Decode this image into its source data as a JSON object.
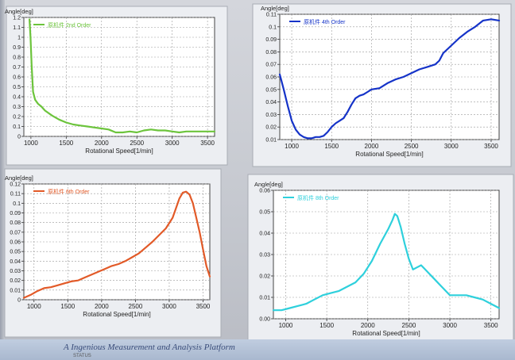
{
  "footer": {
    "text": "A Ingenious Measurement and Analysis Platform",
    "sub": "STATUS"
  },
  "chart_data": [
    {
      "type": "line",
      "ylabel": "Angle[deg]",
      "xlabel": "Rotational Speed[1/min]",
      "legend": "原机件 2nd Order",
      "color": "#6cc43c",
      "xlim": [
        900,
        3600
      ],
      "ylim": [
        0,
        1.2
      ],
      "xticks": [
        "1000",
        "1500",
        "2000",
        "2500",
        "3000",
        "3500"
      ],
      "xtick_values": [
        1000,
        1500,
        2000,
        2500,
        3000,
        3500
      ],
      "yticks": [
        "0",
        "0.1",
        "0.2",
        "0.3",
        "0.4",
        "0.5",
        "0.6",
        "0.7",
        "0.8",
        "0.9",
        "1",
        "1.1",
        "1.2"
      ],
      "ytick_values": [
        0,
        0.1,
        0.2,
        0.3,
        0.4,
        0.5,
        0.6,
        0.7,
        0.8,
        0.9,
        1.0,
        1.1,
        1.2
      ],
      "series": [
        {
          "x": [
            980,
            995,
            1010,
            1030,
            1060,
            1100,
            1150,
            1200,
            1300,
            1400,
            1500,
            1600,
            1700,
            1800,
            1900,
            2000,
            2100,
            2200,
            2300,
            2400,
            2500,
            2600,
            2700,
            2800,
            2900,
            3000,
            3100,
            3200,
            3300,
            3400,
            3500,
            3600
          ],
          "y": [
            1.18,
            1.0,
            0.72,
            0.45,
            0.37,
            0.33,
            0.3,
            0.26,
            0.21,
            0.17,
            0.14,
            0.12,
            0.11,
            0.1,
            0.09,
            0.08,
            0.07,
            0.04,
            0.04,
            0.05,
            0.04,
            0.06,
            0.07,
            0.06,
            0.06,
            0.05,
            0.04,
            0.05,
            0.05,
            0.05,
            0.05,
            0.05
          ]
        }
      ]
    },
    {
      "type": "line",
      "ylabel": "Angle[deg]",
      "xlabel": "Rotational Speed[1/min]",
      "legend": "原机件 4th Order",
      "color": "#1533c8",
      "xlim": [
        850,
        3600
      ],
      "ylim": [
        0.01,
        0.11
      ],
      "xticks": [
        "1000",
        "1500",
        "2000",
        "2500",
        "3000",
        "3500"
      ],
      "xtick_values": [
        1000,
        1500,
        2000,
        2500,
        3000,
        3500
      ],
      "yticks": [
        "0.01",
        "0.02",
        "0.03",
        "0.04",
        "0.05",
        "0.06",
        "0.07",
        "0.08",
        "0.09",
        "0.1",
        "0.11"
      ],
      "ytick_values": [
        0.01,
        0.02,
        0.03,
        0.04,
        0.05,
        0.06,
        0.07,
        0.08,
        0.09,
        0.1,
        0.11
      ],
      "series": [
        {
          "x": [
            850,
            900,
            950,
            1000,
            1050,
            1100,
            1150,
            1200,
            1250,
            1300,
            1350,
            1400,
            1450,
            1500,
            1550,
            1600,
            1650,
            1700,
            1750,
            1800,
            1850,
            1900,
            1950,
            2000,
            2100,
            2200,
            2300,
            2400,
            2500,
            2600,
            2700,
            2800,
            2850,
            2900,
            3000,
            3100,
            3200,
            3300,
            3400,
            3500,
            3600
          ],
          "y": [
            0.062,
            0.05,
            0.037,
            0.025,
            0.018,
            0.014,
            0.012,
            0.011,
            0.011,
            0.012,
            0.012,
            0.013,
            0.016,
            0.02,
            0.023,
            0.025,
            0.027,
            0.032,
            0.038,
            0.043,
            0.045,
            0.046,
            0.048,
            0.05,
            0.051,
            0.055,
            0.058,
            0.06,
            0.063,
            0.066,
            0.068,
            0.07,
            0.073,
            0.079,
            0.085,
            0.091,
            0.096,
            0.1,
            0.105,
            0.106,
            0.105
          ]
        }
      ]
    },
    {
      "type": "line",
      "ylabel": "Angle[deg]",
      "xlabel": "Rotational Speed[1/min]",
      "legend": "原机件 6th Order",
      "color": "#e25a28",
      "xlim": [
        850,
        3600
      ],
      "ylim": [
        0,
        0.12
      ],
      "xticks": [
        "1000",
        "1500",
        "2000",
        "2500",
        "3000",
        "3500"
      ],
      "xtick_values": [
        1000,
        1500,
        2000,
        2500,
        3000,
        3500
      ],
      "yticks": [
        "0",
        "0.01",
        "0.02",
        "0.03",
        "0.04",
        "0.05",
        "0.06",
        "0.07",
        "0.08",
        "0.09",
        "0.1",
        "0.11",
        "0.12"
      ],
      "ytick_values": [
        0,
        0.01,
        0.02,
        0.03,
        0.04,
        0.05,
        0.06,
        0.07,
        0.08,
        0.09,
        0.1,
        0.11,
        0.12
      ],
      "series": [
        {
          "x": [
            850,
            950,
            1050,
            1150,
            1250,
            1350,
            1450,
            1550,
            1650,
            1750,
            1850,
            1950,
            2050,
            2150,
            2250,
            2350,
            2450,
            2550,
            2650,
            2750,
            2850,
            2950,
            3050,
            3100,
            3150,
            3200,
            3250,
            3300,
            3350,
            3400,
            3450,
            3500,
            3550,
            3600
          ],
          "y": [
            0.002,
            0.005,
            0.009,
            0.012,
            0.013,
            0.015,
            0.017,
            0.019,
            0.02,
            0.023,
            0.026,
            0.029,
            0.032,
            0.035,
            0.037,
            0.04,
            0.044,
            0.048,
            0.054,
            0.06,
            0.067,
            0.074,
            0.085,
            0.095,
            0.105,
            0.111,
            0.112,
            0.109,
            0.1,
            0.085,
            0.07,
            0.052,
            0.035,
            0.024
          ]
        }
      ]
    },
    {
      "type": "line",
      "ylabel": "Angle[deg]",
      "xlabel": "Rotational Speed[1/min]",
      "legend": "原机件 8th Order",
      "color": "#2ed0dc",
      "xlim": [
        850,
        3600
      ],
      "ylim": [
        0,
        0.06
      ],
      "xticks": [
        "1000",
        "1500",
        "2000",
        "2500",
        "3000",
        "3500"
      ],
      "xtick_values": [
        1000,
        1500,
        2000,
        2500,
        3000,
        3500
      ],
      "yticks": [
        "0.00",
        "0.01",
        "0.02",
        "0.03",
        "0.04",
        "0.05",
        "0.06"
      ],
      "ytick_values": [
        0,
        0.01,
        0.02,
        0.03,
        0.04,
        0.05,
        0.06
      ],
      "series": [
        {
          "x": [
            850,
            950,
            1050,
            1150,
            1250,
            1350,
            1450,
            1550,
            1650,
            1750,
            1850,
            1950,
            2050,
            2150,
            2250,
            2300,
            2330,
            2360,
            2400,
            2450,
            2500,
            2550,
            2600,
            2650,
            2700,
            2750,
            2800,
            2900,
            3000,
            3100,
            3200,
            3300,
            3400,
            3500,
            3600
          ],
          "y": [
            0.004,
            0.004,
            0.005,
            0.006,
            0.007,
            0.009,
            0.011,
            0.012,
            0.013,
            0.015,
            0.017,
            0.021,
            0.027,
            0.035,
            0.042,
            0.046,
            0.049,
            0.048,
            0.043,
            0.035,
            0.028,
            0.023,
            0.024,
            0.025,
            0.023,
            0.021,
            0.019,
            0.015,
            0.011,
            0.011,
            0.011,
            0.01,
            0.009,
            0.007,
            0.005
          ]
        }
      ]
    }
  ]
}
